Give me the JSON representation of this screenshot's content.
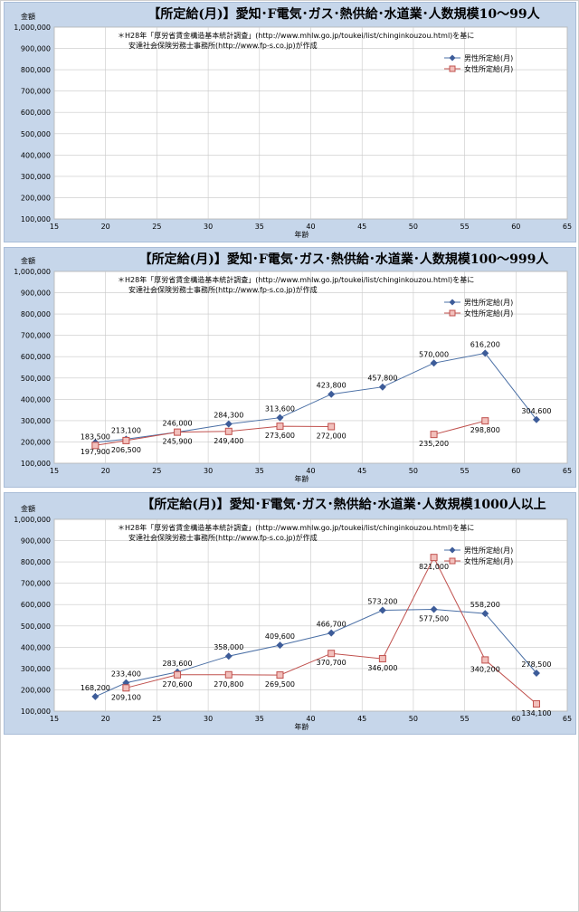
{
  "chart_data": [
    {
      "type": "line",
      "title": "【所定給(月)】愛知･F電気･ガス･熱供給･水道業･人数規模10～99人",
      "note": [
        "＊H28年「厚労省賃金構造基本統計調査」(http://www.mhlw.go.jp/toukei/list/chinginkouzou.html)を基に",
        "安達社会保険労務士事務所(http://www.fp-s.co.jp)が作成"
      ],
      "ylabel": "金額",
      "xlabel": "年齢",
      "xlim": [
        15,
        65
      ],
      "ylim": [
        100000,
        1000000
      ],
      "xticks": [
        15,
        20,
        25,
        30,
        35,
        40,
        45,
        50,
        55,
        60,
        65
      ],
      "yticks": [
        "100,000",
        "200,000",
        "300,000",
        "400,000",
        "500,000",
        "600,000",
        "700,000",
        "800,000",
        "900,000",
        "1,000,000"
      ],
      "legend": "top-right",
      "series": [
        {
          "name": "男性所定給(月)",
          "color": "#4a6fa5",
          "marker": "diamond",
          "points": []
        },
        {
          "name": "女性所定給(月)",
          "color": "#c0504d",
          "marker": "square",
          "points": []
        }
      ]
    },
    {
      "type": "line",
      "title": "【所定給(月)】愛知･F電気･ガス･熱供給･水道業･人数規模100～999人",
      "note": [
        "＊H28年「厚労省賃金構造基本統計調査」(http://www.mhlw.go.jp/toukei/list/chinginkouzou.html)を基に",
        "安達社会保険労務士事務所(http://www.fp-s.co.jp)が作成"
      ],
      "ylabel": "金額",
      "xlabel": "年齢",
      "xlim": [
        15,
        65
      ],
      "ylim": [
        100000,
        1000000
      ],
      "xticks": [
        15,
        20,
        25,
        30,
        35,
        40,
        45,
        50,
        55,
        60,
        65
      ],
      "yticks": [
        "100,000",
        "200,000",
        "300,000",
        "400,000",
        "500,000",
        "600,000",
        "700,000",
        "800,000",
        "900,000",
        "1,000,000"
      ],
      "legend": "top-right",
      "series": [
        {
          "name": "男性所定給(月)",
          "color": "#4a6fa5",
          "marker": "diamond",
          "points": [
            {
              "x": 19,
              "y": 197900,
              "label": "197,900",
              "lpos": "below"
            },
            {
              "x": 22,
              "y": 213100,
              "label": "213,100",
              "lpos": "above"
            },
            {
              "x": 27,
              "y": 246000,
              "label": "246,000",
              "lpos": "above"
            },
            {
              "x": 32,
              "y": 284300,
              "label": "284,300",
              "lpos": "above"
            },
            {
              "x": 37,
              "y": 313600,
              "label": "313,600",
              "lpos": "above"
            },
            {
              "x": 42,
              "y": 423800,
              "label": "423,800",
              "lpos": "above"
            },
            {
              "x": 47,
              "y": 457800,
              "label": "457,800",
              "lpos": "above"
            },
            {
              "x": 52,
              "y": 570000,
              "label": "570,000",
              "lpos": "above"
            },
            {
              "x": 57,
              "y": 616200,
              "label": "616,200",
              "lpos": "above"
            },
            {
              "x": 62,
              "y": 304600,
              "label": "304,600",
              "lpos": "above"
            }
          ]
        },
        {
          "name": "女性所定給(月)",
          "color": "#c0504d",
          "marker": "square",
          "points": [
            {
              "x": 19,
              "y": 183500,
              "label": "183,500",
              "lpos": "above"
            },
            {
              "x": 22,
              "y": 206500,
              "label": "206,500",
              "lpos": "below"
            },
            {
              "x": 27,
              "y": 245900,
              "label": "245,900",
              "lpos": "below"
            },
            {
              "x": 32,
              "y": 249400,
              "label": "249,400",
              "lpos": "below"
            },
            {
              "x": 37,
              "y": 273600,
              "label": "273,600",
              "lpos": "below"
            },
            {
              "x": 42,
              "y": 272000,
              "label": "272,000",
              "lpos": "below"
            },
            {
              "x": 52,
              "y": 235200,
              "label": "235,200",
              "lpos": "below",
              "break": true
            },
            {
              "x": 57,
              "y": 298800,
              "label": "298,800",
              "lpos": "below"
            }
          ]
        }
      ]
    },
    {
      "type": "line",
      "title": "【所定給(月)】愛知･F電気･ガス･熱供給･水道業･人数規模1000人以上",
      "note": [
        "＊H28年「厚労省賃金構造基本統計調査」(http://www.mhlw.go.jp/toukei/list/chinginkouzou.html)を基に",
        "安達社会保険労務士事務所(http://www.fp-s.co.jp)が作成"
      ],
      "ylabel": "金額",
      "xlabel": "年齢",
      "xlim": [
        15,
        65
      ],
      "ylim": [
        100000,
        1000000
      ],
      "xticks": [
        15,
        20,
        25,
        30,
        35,
        40,
        45,
        50,
        55,
        60,
        65
      ],
      "yticks": [
        "100,000",
        "200,000",
        "300,000",
        "400,000",
        "500,000",
        "600,000",
        "700,000",
        "800,000",
        "900,000",
        "1,000,000"
      ],
      "legend": "top-right",
      "series": [
        {
          "name": "男性所定給(月)",
          "color": "#4a6fa5",
          "marker": "diamond",
          "points": [
            {
              "x": 19,
              "y": 168200,
              "label": "168,200",
              "lpos": "above"
            },
            {
              "x": 22,
              "y": 233400,
              "label": "233,400",
              "lpos": "above"
            },
            {
              "x": 27,
              "y": 283600,
              "label": "283,600",
              "lpos": "above"
            },
            {
              "x": 32,
              "y": 358000,
              "label": "358,000",
              "lpos": "above"
            },
            {
              "x": 37,
              "y": 409600,
              "label": "409,600",
              "lpos": "above"
            },
            {
              "x": 42,
              "y": 466700,
              "label": "466,700",
              "lpos": "above"
            },
            {
              "x": 47,
              "y": 573200,
              "label": "573,200",
              "lpos": "above"
            },
            {
              "x": 52,
              "y": 577500,
              "label": "577,500",
              "lpos": "below"
            },
            {
              "x": 57,
              "y": 558200,
              "label": "558,200",
              "lpos": "above"
            },
            {
              "x": 62,
              "y": 278500,
              "label": "278,500",
              "lpos": "above"
            }
          ]
        },
        {
          "name": "女性所定給(月)",
          "color": "#c0504d",
          "marker": "square",
          "points": [
            {
              "x": 22,
              "y": 209100,
              "label": "209,100",
              "lpos": "below"
            },
            {
              "x": 27,
              "y": 270600,
              "label": "270,600",
              "lpos": "below"
            },
            {
              "x": 32,
              "y": 270800,
              "label": "270,800",
              "lpos": "below"
            },
            {
              "x": 37,
              "y": 269500,
              "label": "269,500",
              "lpos": "below"
            },
            {
              "x": 42,
              "y": 370700,
              "label": "370,700",
              "lpos": "below"
            },
            {
              "x": 47,
              "y": 346000,
              "label": "346,000",
              "lpos": "below"
            },
            {
              "x": 52,
              "y": 821000,
              "label": "821,000",
              "lpos": "below"
            },
            {
              "x": 57,
              "y": 340200,
              "label": "340,200",
              "lpos": "below"
            },
            {
              "x": 62,
              "y": 134100,
              "label": "134,100",
              "lpos": "below"
            }
          ]
        }
      ]
    }
  ]
}
